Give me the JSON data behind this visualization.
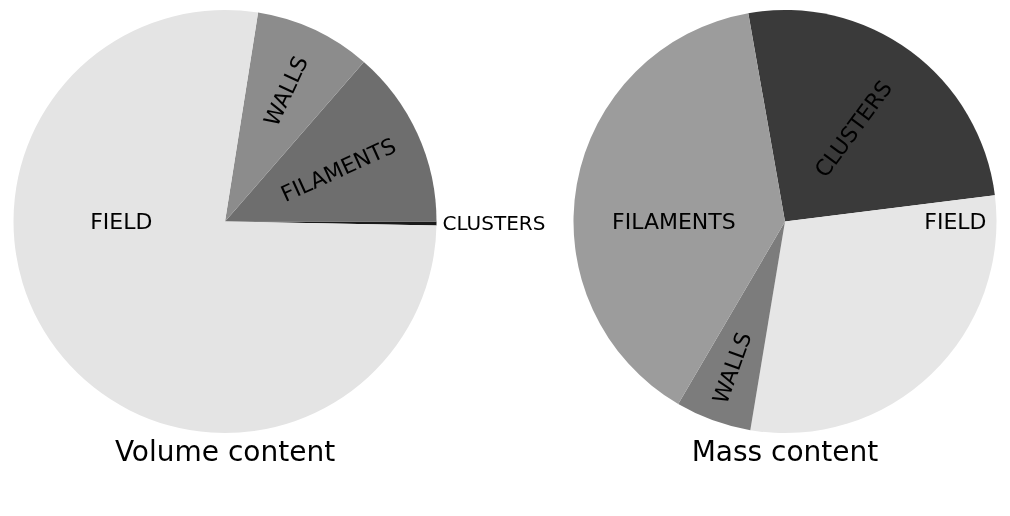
{
  "chart_data": [
    {
      "type": "pie",
      "title": "Volume content",
      "categories": [
        "CLUSTERS",
        "FILAMENTS",
        "WALLS",
        "FIELD"
      ],
      "values": [
        0.3,
        13.6,
        8.9,
        77.2
      ],
      "colors": [
        "#1a1a1a",
        "#6e6e6e",
        "#8c8c8c",
        "#e4e4e4"
      ],
      "legend": false
    },
    {
      "type": "pie",
      "title": "Mass content",
      "categories": [
        "CLUSTERS",
        "FIELD",
        "WALLS",
        "FILAMENTS"
      ],
      "values": [
        25.8,
        29.6,
        5.8,
        38.8
      ],
      "colors": [
        "#3a3a3a",
        "#e6e6e6",
        "#7c7c7c",
        "#9c9c9c"
      ],
      "legend": false
    }
  ]
}
